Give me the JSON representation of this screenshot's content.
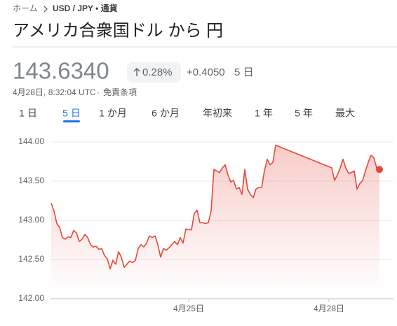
{
  "breadcrumb": [
    "ホーム",
    "USD / JPY • 通貨"
  ],
  "title": "アメリカ合衆国ドル から 円",
  "price": "143.6340",
  "change_percent": "0.28%",
  "change": "+0.4050",
  "change_period": "5 日",
  "timestamp": "4月28日, 8:32:04 UTC",
  "meta_separator": "·",
  "disclaimer": "免責条項",
  "tabs": [
    "1 日",
    "5 日",
    "1 か月",
    "6 か月",
    "年初来",
    "1 年",
    "5 年",
    "最大"
  ],
  "selected_tab": 1,
  "chart_data": {
    "type": "area",
    "color": "#e5483b",
    "grid": true,
    "x": [
      0,
      1,
      2,
      3,
      4,
      5,
      6,
      7,
      8,
      9,
      10,
      11,
      12,
      13,
      14,
      15,
      16,
      17,
      18,
      19,
      20,
      21,
      22,
      23,
      24,
      25,
      26,
      27,
      28,
      29,
      30,
      31,
      32,
      33,
      34,
      35,
      36,
      37,
      38,
      39,
      40,
      41,
      42,
      43,
      44,
      45,
      46,
      47,
      48,
      49,
      50,
      51,
      52,
      53,
      54,
      55,
      56,
      57,
      58,
      59,
      60,
      61,
      62,
      63,
      64,
      65,
      66,
      67,
      68,
      69,
      70,
      71,
      72,
      73,
      74,
      75,
      76,
      77,
      78,
      79,
      80,
      100,
      101,
      102,
      103,
      104,
      105,
      106,
      107,
      108,
      109,
      110,
      111,
      112,
      113,
      114,
      115,
      116,
      117
    ],
    "values": [
      143.22,
      143.12,
      142.96,
      142.91,
      142.78,
      142.76,
      142.79,
      142.78,
      142.87,
      142.84,
      142.73,
      142.76,
      142.82,
      142.78,
      142.69,
      142.66,
      142.67,
      142.63,
      142.64,
      142.55,
      142.51,
      142.38,
      142.49,
      142.44,
      142.6,
      142.53,
      142.4,
      142.44,
      142.48,
      142.46,
      142.49,
      142.64,
      142.69,
      142.66,
      142.71,
      142.8,
      142.78,
      142.8,
      142.69,
      142.53,
      142.64,
      142.62,
      142.65,
      142.69,
      142.73,
      142.69,
      142.78,
      142.71,
      142.89,
      142.88,
      142.88,
      143.09,
      143.13,
      142.97,
      142.97,
      142.96,
      142.97,
      143.12,
      143.65,
      143.63,
      143.61,
      143.67,
      143.71,
      143.58,
      143.49,
      143.51,
      143.4,
      143.42,
      143.33,
      143.65,
      143.4,
      143.33,
      143.29,
      143.4,
      143.42,
      143.42,
      143.63,
      143.78,
      143.71,
      143.74,
      143.96,
      143.67,
      143.51,
      143.58,
      143.67,
      143.78,
      143.67,
      143.6,
      143.61,
      143.63,
      143.4,
      143.47,
      143.51,
      143.63,
      143.74,
      143.83,
      143.8,
      143.67,
      143.65
    ],
    "xlim": [
      0,
      122
    ],
    "xticks": [
      {
        "value": 49,
        "label": "4月25日"
      },
      {
        "value": 99,
        "label": "4月28日"
      }
    ],
    "ylim": [
      142,
      144
    ],
    "yticks": [
      {
        "value": 142,
        "label": "142.00"
      },
      {
        "value": 142.5,
        "label": "142.50"
      },
      {
        "value": 143,
        "label": "143.00"
      },
      {
        "value": 143.5,
        "label": "143.50"
      },
      {
        "value": 144,
        "label": "144.00"
      }
    ]
  }
}
